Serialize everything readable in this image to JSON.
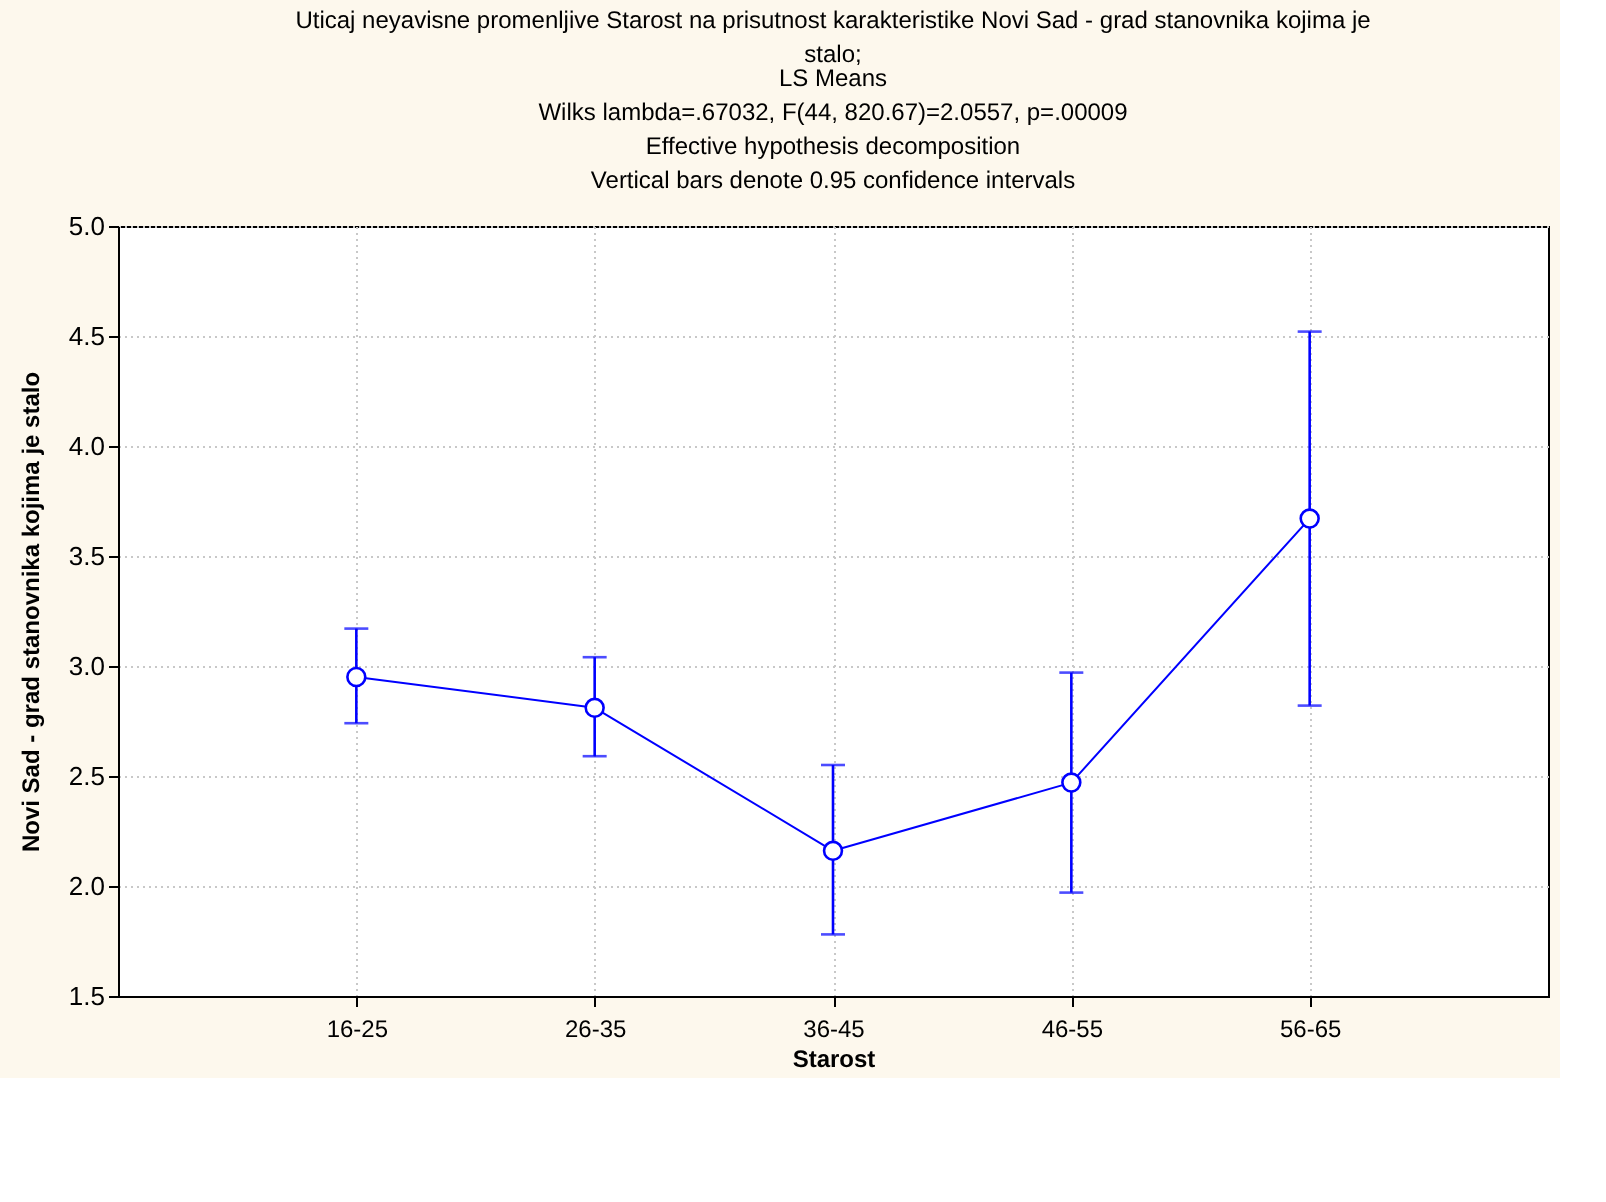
{
  "chart_data": {
    "type": "line",
    "title": "Uticaj neyavisne promenljive Starost na prisutnost karakteristike Novi Sad - grad stanovnika kojima je stalo;",
    "subtitle": "LS Means\nWilks lambda=.67032, F(44, 820.67)=2.0557, p=.00009\nEffective hypothesis decomposition\nVertical bars denote 0.95 confidence intervals",
    "xlabel": "Starost",
    "ylabel": "Novi Sad - grad stanovnika kojima je stalo",
    "categories": [
      "16-25",
      "26-35",
      "36-45",
      "46-55",
      "56-65"
    ],
    "series": [
      {
        "color": "#0000ff",
        "values": [
          2.95,
          2.81,
          2.16,
          2.47,
          3.67
        ],
        "errors": [
          [
            2.74,
            3.17
          ],
          [
            2.59,
            3.04
          ],
          [
            1.78,
            2.55
          ],
          [
            1.97,
            2.97
          ],
          [
            2.82,
            4.52
          ]
        ]
      }
    ],
    "ylim": [
      1.5,
      5.0
    ],
    "yticks": [
      {
        "value": 1.5,
        "label": "1.5"
      },
      {
        "value": 2.0,
        "label": "2.0"
      },
      {
        "value": 2.5,
        "label": "2.5"
      },
      {
        "value": 3.0,
        "label": "3.0"
      },
      {
        "value": 3.5,
        "label": "3.5"
      },
      {
        "value": 4.0,
        "label": "4.0"
      },
      {
        "value": 4.5,
        "label": "4.5"
      },
      {
        "value": 5.0,
        "label": "5.0"
      }
    ],
    "grid": true,
    "marker": "circle",
    "line_style": "solid"
  }
}
